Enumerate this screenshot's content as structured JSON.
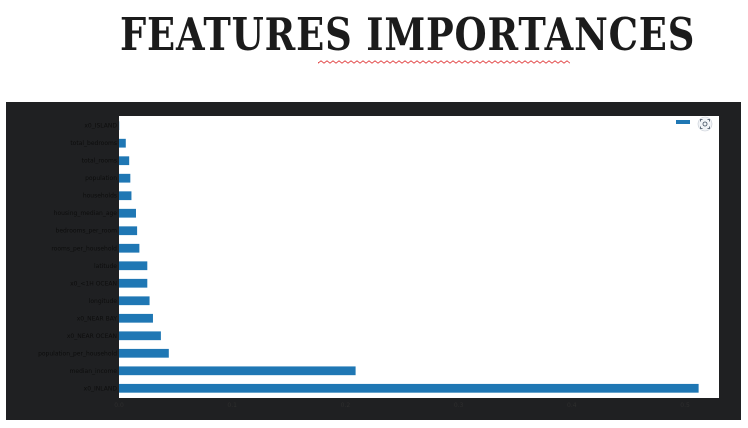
{
  "page": {
    "title": "FEATURES IMPORTANCES"
  },
  "colors": {
    "bar": "#1f77b4",
    "panel": "#1f2022",
    "plot_bg": "#ffffff",
    "squiggle": "#e03a3a"
  },
  "chart_data": {
    "type": "bar",
    "orientation": "horizontal",
    "title": "",
    "xlabel": "",
    "ylabel": "",
    "categories": [
      "x0_INLAND",
      "median_income",
      "population_per_household",
      "x0_NEAR OCEAN",
      "x0_NEAR BAY",
      "longitude",
      "x0_<1H OCEAN",
      "latitude",
      "rooms_per_household",
      "bedrooms_per_room",
      "housing_median_age",
      "households",
      "population",
      "total_rooms",
      "total_bedrooms",
      "x0_ISLAND"
    ],
    "series": [
      {
        "values": [
          0.512,
          0.209,
          0.044,
          0.037,
          0.03,
          0.027,
          0.025,
          0.025,
          0.018,
          0.016,
          0.015,
          0.011,
          0.01,
          0.009,
          0.006,
          0.0002
        ]
      }
    ],
    "x_ticks": [
      "0.0",
      "0.1",
      "0.2",
      "0.3",
      "0.4",
      "0.5"
    ],
    "xlim": [
      0,
      0.53
    ],
    "grid": false,
    "legend": "top-right"
  }
}
